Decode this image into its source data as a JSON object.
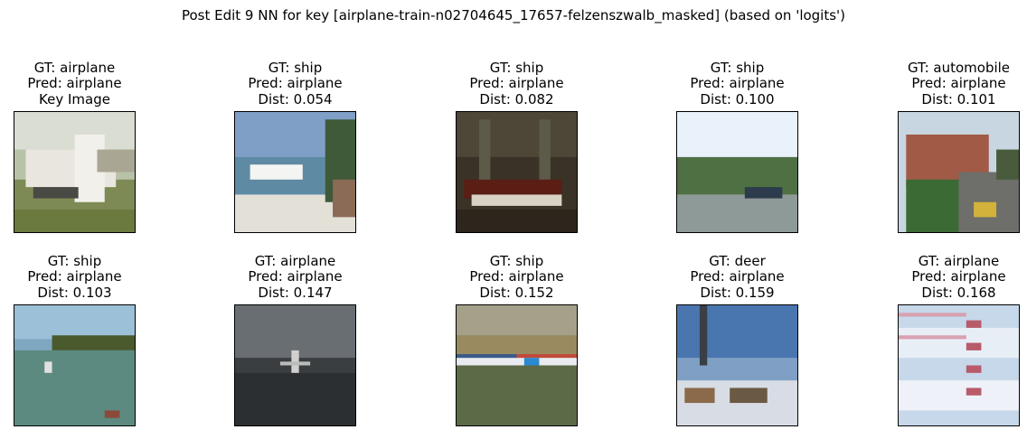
{
  "figure": {
    "title": "Post Edit 9 NN for key [airplane-train-n02704645_17657-felzenszwalb_masked] (based on 'logits')"
  },
  "panels": [
    {
      "gt": "GT: airplane",
      "pred": "Pred: airplane",
      "third": "Key Image"
    },
    {
      "gt": "GT: ship",
      "pred": "Pred: airplane",
      "third": "Dist: 0.054"
    },
    {
      "gt": "GT: ship",
      "pred": "Pred: airplane",
      "third": "Dist: 0.082"
    },
    {
      "gt": "GT: ship",
      "pred": "Pred: airplane",
      "third": "Dist: 0.100"
    },
    {
      "gt": "GT: automobile",
      "pred": "Pred: airplane",
      "third": "Dist: 0.101"
    },
    {
      "gt": "GT: ship",
      "pred": "Pred: airplane",
      "third": "Dist: 0.103"
    },
    {
      "gt": "GT: airplane",
      "pred": "Pred: airplane",
      "third": "Dist: 0.147"
    },
    {
      "gt": "GT: ship",
      "pred": "Pred: airplane",
      "third": "Dist: 0.152"
    },
    {
      "gt": "GT: deer",
      "pred": "Pred: airplane",
      "third": "Dist: 0.159"
    },
    {
      "gt": "GT: airplane",
      "pred": "Pred: airplane",
      "third": "Dist: 0.168"
    }
  ]
}
